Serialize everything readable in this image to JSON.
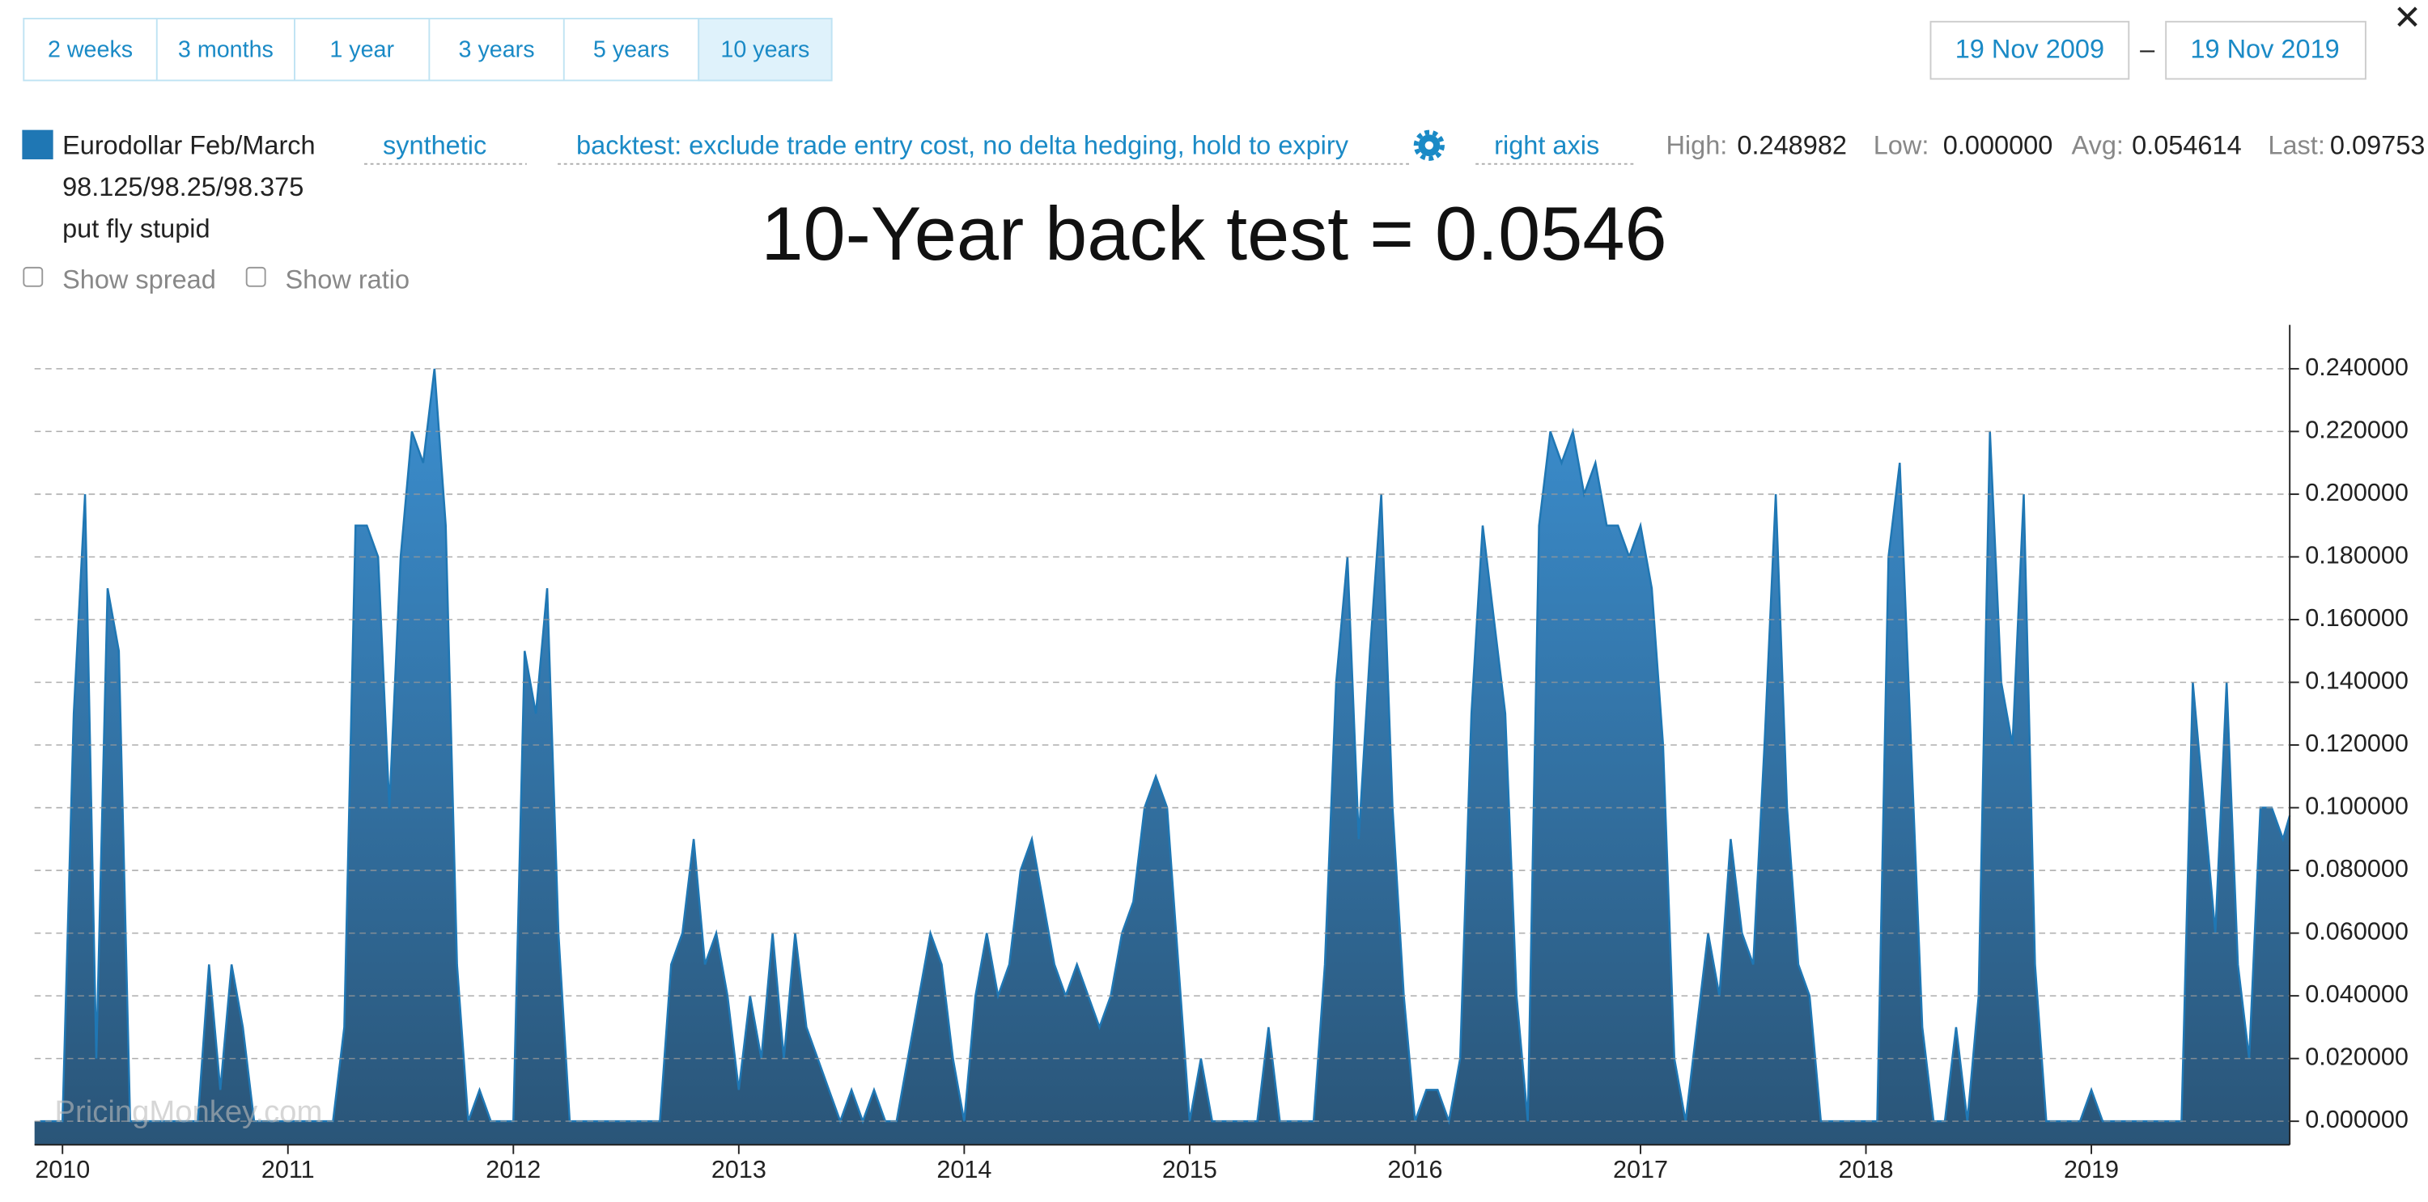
{
  "range_buttons": [
    "2 weeks",
    "3 months",
    "1 year",
    "3 years",
    "5 years",
    "10 years"
  ],
  "date_from": "19 Nov 2009",
  "date_sep": "–",
  "date_to": "19 Nov 2019",
  "close": "✕",
  "legend": {
    "lines": [
      "Eurodollar Feb/March",
      "98.125/98.25/98.375",
      "put fly stupid"
    ],
    "mode": "synthetic",
    "backtest": "backtest: exclude trade entry cost, no delta hedging, hold to expiry",
    "axis": "right axis"
  },
  "stats": [
    {
      "label": "High:",
      "value": "0.248982"
    },
    {
      "label": "Low:",
      "value": "0.000000"
    },
    {
      "label": "Avg:",
      "value": "0.054614"
    },
    {
      "label": "Last:",
      "value": "0.09753"
    }
  ],
  "checkboxes": [
    "Show spread",
    "Show ratio"
  ],
  "watermark": "PricingMonkey.com",
  "chart_data": {
    "type": "area",
    "title": "10-Year back test = 0.0546",
    "color": "#1f77b4",
    "x": [
      2009.9,
      2009.95,
      2010,
      2010.05,
      2010.1,
      2010.15,
      2010.2,
      2010.25,
      2010.3,
      2010.35,
      2010.4,
      2010.45,
      2010.5,
      2010.55,
      2010.6,
      2010.65,
      2010.7,
      2010.75,
      2010.8,
      2010.85,
      2010.9,
      2010.95,
      2011,
      2011.05,
      2011.1,
      2011.15,
      2011.2,
      2011.25,
      2011.3,
      2011.35,
      2011.4,
      2011.45,
      2011.5,
      2011.55,
      2011.6,
      2011.65,
      2011.7,
      2011.75,
      2011.8,
      2011.85,
      2011.9,
      2011.95,
      2012,
      2012.05,
      2012.1,
      2012.15,
      2012.2,
      2012.25,
      2012.3,
      2012.35,
      2012.4,
      2012.45,
      2012.5,
      2012.55,
      2012.6,
      2012.65,
      2012.7,
      2012.75,
      2012.8,
      2012.85,
      2012.9,
      2012.95,
      2013,
      2013.05,
      2013.1,
      2013.15,
      2013.2,
      2013.25,
      2013.3,
      2013.35,
      2013.4,
      2013.45,
      2013.5,
      2013.55,
      2013.6,
      2013.65,
      2013.7,
      2013.75,
      2013.8,
      2013.85,
      2013.9,
      2013.95,
      2014,
      2014.05,
      2014.1,
      2014.15,
      2014.2,
      2014.25,
      2014.3,
      2014.35,
      2014.4,
      2014.45,
      2014.5,
      2014.55,
      2014.6,
      2014.65,
      2014.7,
      2014.75,
      2014.8,
      2014.85,
      2014.9,
      2014.95,
      2015,
      2015.05,
      2015.1,
      2015.15,
      2015.2,
      2015.25,
      2015.3,
      2015.35,
      2015.4,
      2015.45,
      2015.5,
      2015.55,
      2015.6,
      2015.65,
      2015.7,
      2015.75,
      2015.8,
      2015.85,
      2015.9,
      2015.95,
      2016,
      2016.05,
      2016.1,
      2016.15,
      2016.2,
      2016.25,
      2016.3,
      2016.35,
      2016.4,
      2016.45,
      2016.5,
      2016.55,
      2016.6,
      2016.65,
      2016.7,
      2016.75,
      2016.8,
      2016.85,
      2016.9,
      2016.95,
      2017,
      2017.05,
      2017.1,
      2017.15,
      2017.2,
      2017.25,
      2017.3,
      2017.35,
      2017.4,
      2017.45,
      2017.5,
      2017.55,
      2017.6,
      2017.65,
      2017.7,
      2017.75,
      2017.8,
      2017.85,
      2017.9,
      2017.95,
      2018,
      2018.05,
      2018.1,
      2018.15,
      2018.2,
      2018.25,
      2018.3,
      2018.35,
      2018.4,
      2018.45,
      2018.5,
      2018.55,
      2018.6,
      2018.65,
      2018.7,
      2018.75,
      2018.8,
      2018.85,
      2018.9,
      2018.95,
      2019,
      2019.05,
      2019.1,
      2019.15,
      2019.2,
      2019.25,
      2019.3,
      2019.35,
      2019.4,
      2019.45,
      2019.5,
      2019.55,
      2019.6,
      2019.65,
      2019.7,
      2019.75,
      2019.8,
      2019.85,
      2019.88
    ],
    "values": [
      0,
      0,
      0,
      0.13,
      0.2,
      0.02,
      0.17,
      0.15,
      0,
      0,
      0,
      0,
      0,
      0,
      0,
      0.05,
      0.01,
      0.05,
      0.03,
      0,
      0,
      0,
      0,
      0,
      0,
      0,
      0,
      0.03,
      0.19,
      0.19,
      0.18,
      0.1,
      0.18,
      0.22,
      0.21,
      0.24,
      0.19,
      0.05,
      0,
      0.01,
      0,
      0,
      0,
      0.15,
      0.13,
      0.17,
      0.06,
      0,
      0,
      0,
      0,
      0,
      0,
      0,
      0,
      0,
      0.05,
      0.06,
      0.09,
      0.05,
      0.06,
      0.04,
      0.01,
      0.04,
      0.02,
      0.06,
      0.02,
      0.06,
      0.03,
      0.02,
      0.01,
      0,
      0.01,
      0,
      0.01,
      0,
      0,
      0.02,
      0.04,
      0.06,
      0.05,
      0.02,
      0,
      0.04,
      0.06,
      0.04,
      0.05,
      0.08,
      0.09,
      0.07,
      0.05,
      0.04,
      0.05,
      0.04,
      0.03,
      0.04,
      0.06,
      0.07,
      0.1,
      0.11,
      0.1,
      0.05,
      0,
      0.02,
      0,
      0,
      0,
      0,
      0,
      0.03,
      0,
      0,
      0,
      0,
      0.05,
      0.14,
      0.18,
      0.09,
      0.15,
      0.2,
      0.1,
      0.04,
      0,
      0.01,
      0.01,
      0,
      0.02,
      0.13,
      0.19,
      0.16,
      0.13,
      0.04,
      0,
      0.19,
      0.22,
      0.21,
      0.22,
      0.2,
      0.21,
      0.19,
      0.19,
      0.18,
      0.19,
      0.17,
      0.12,
      0.02,
      0,
      0.03,
      0.06,
      0.04,
      0.09,
      0.06,
      0.05,
      0.12,
      0.2,
      0.1,
      0.05,
      0.04,
      0,
      0,
      0,
      0,
      0,
      0,
      0.18,
      0.21,
      0.12,
      0.03,
      0,
      0,
      0.03,
      0,
      0.04,
      0.22,
      0.14,
      0.12,
      0.2,
      0.05,
      0,
      0,
      0,
      0,
      0.01,
      0,
      0,
      0,
      0,
      0,
      0,
      0,
      0,
      0.14,
      0.1,
      0.06,
      0.14,
      0.05,
      0.02,
      0.1,
      0.1,
      0.09,
      0.0975
    ],
    "xlim": [
      2009.876,
      2019.88
    ],
    "xticks": [
      2010,
      2011,
      2012,
      2013,
      2014,
      2015,
      2016,
      2017,
      2018,
      2019
    ],
    "ylim": [
      -0.0075,
      0.254
    ],
    "yticks": [
      {
        "value": 0,
        "label": "0.000000"
      },
      {
        "value": 0.02,
        "label": "0.020000"
      },
      {
        "value": 0.04,
        "label": "0.040000"
      },
      {
        "value": 0.06,
        "label": "0.060000"
      },
      {
        "value": 0.08,
        "label": "0.080000"
      },
      {
        "value": 0.1,
        "label": "0.100000"
      },
      {
        "value": 0.12,
        "label": "0.120000"
      },
      {
        "value": 0.14,
        "label": "0.140000"
      },
      {
        "value": 0.16,
        "label": "0.160000"
      },
      {
        "value": 0.18,
        "label": "0.180000"
      },
      {
        "value": 0.2,
        "label": "0.200000"
      },
      {
        "value": 0.22,
        "label": "0.220000"
      },
      {
        "value": 0.24,
        "label": "0.240000"
      }
    ],
    "grid": true,
    "y_axis_side": "right"
  }
}
